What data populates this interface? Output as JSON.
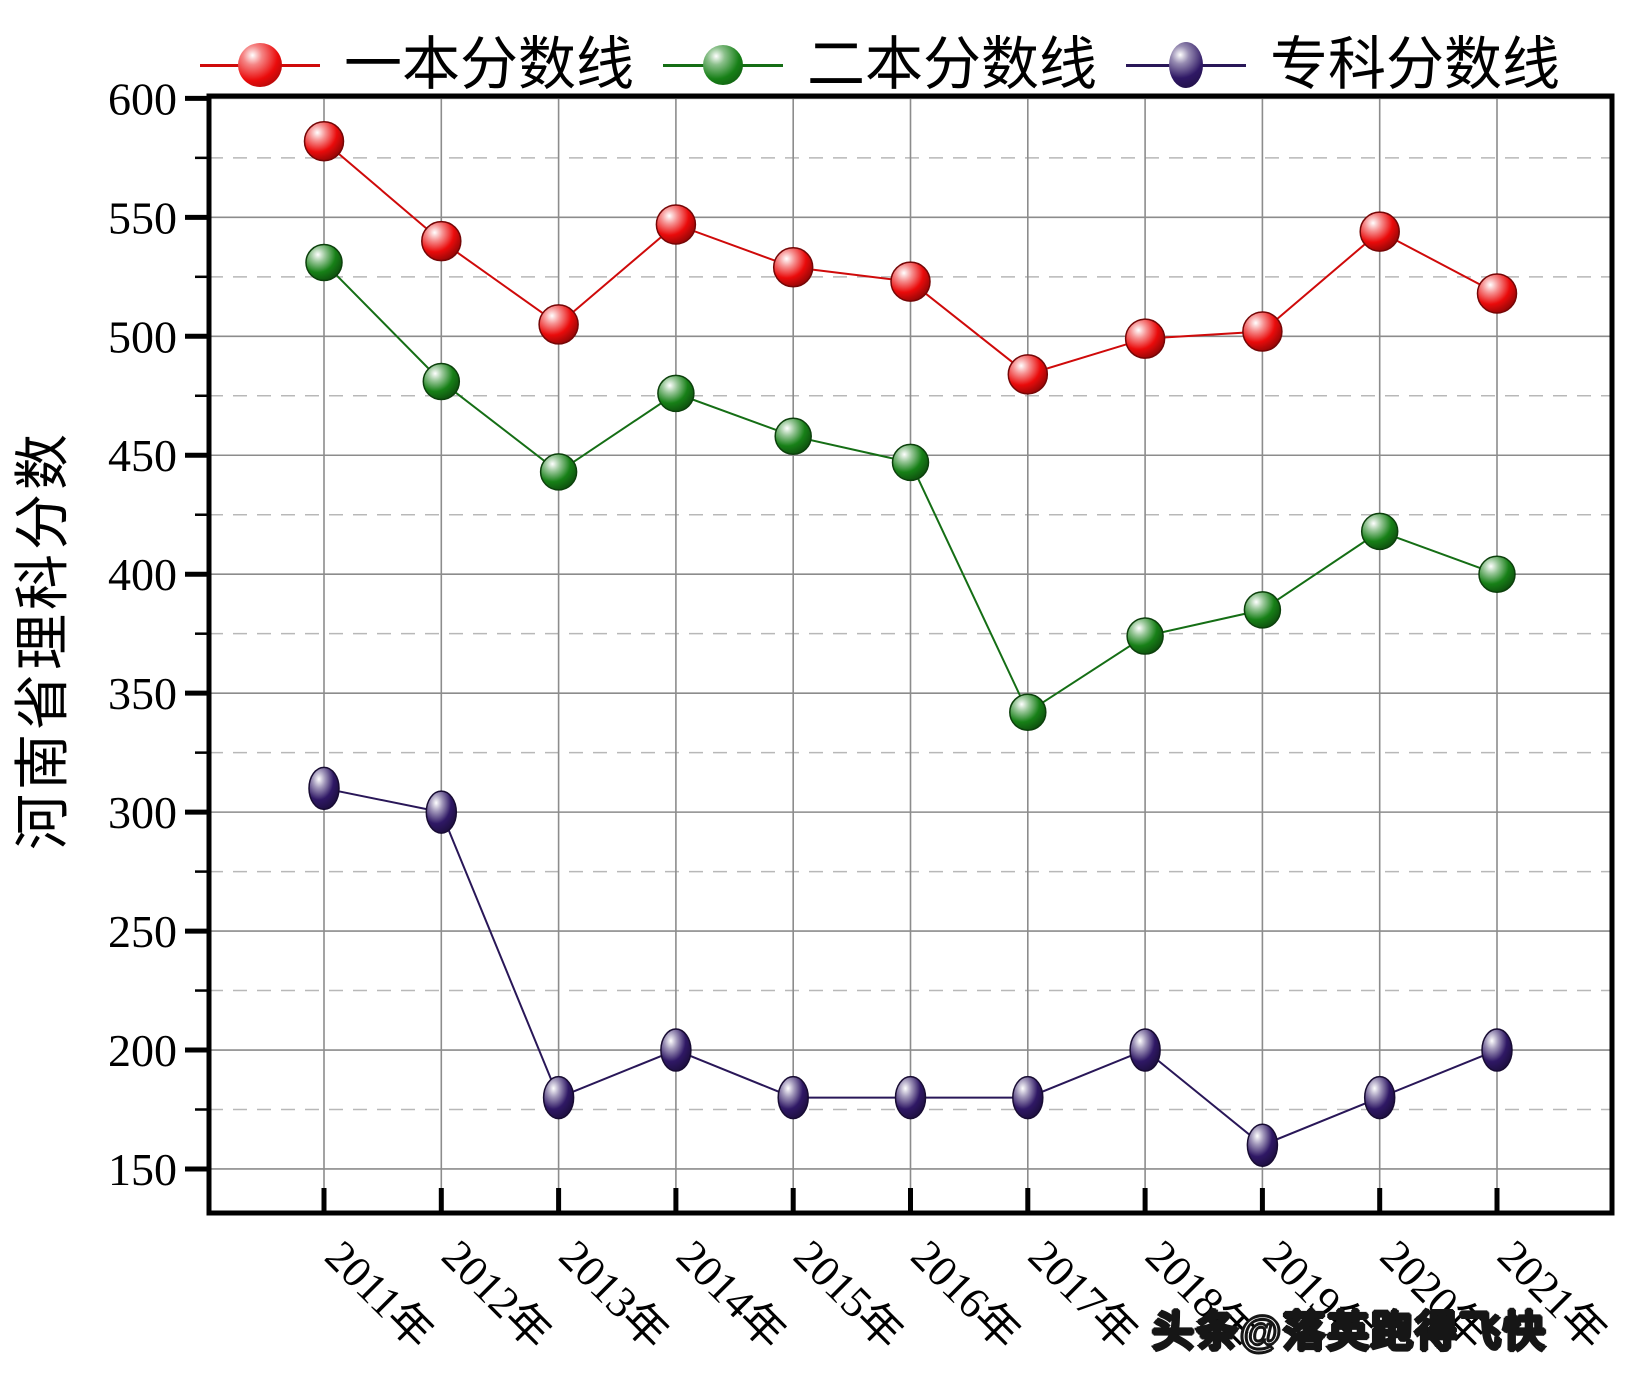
{
  "watermark": "头条@落英跑得飞快",
  "legend": {
    "items": [
      {
        "label": "一本分数线",
        "color": "#ea0b0b",
        "line_color": "#cf0a0a"
      },
      {
        "label": "二本分数线",
        "color": "#178017",
        "line_color": "#156e15"
      },
      {
        "label": "专科分数线",
        "color": "#2f1865",
        "line_color": "#291758"
      }
    ]
  },
  "axes": {
    "y_label": "河南省理科分数",
    "y_ticks": [
      150,
      200,
      250,
      300,
      350,
      400,
      450,
      500,
      550,
      600
    ],
    "grid_major_color": "#8c8c8c",
    "grid_minor_color": "#b8b8b8",
    "axis_color": "#000000"
  },
  "chart_data": {
    "type": "line",
    "categories": [
      "2011年",
      "2012年",
      "2013年",
      "2014年",
      "2015年",
      "2016年",
      "2017年",
      "2018年",
      "2019年",
      "2020年",
      "2021年"
    ],
    "series": [
      {
        "name": "一本分数线",
        "color": "#ea0b0b",
        "line_color": "#cf0a0a",
        "marker": "sphere-circle",
        "values": [
          582,
          540,
          505,
          547,
          529,
          523,
          484,
          499,
          502,
          544,
          518
        ]
      },
      {
        "name": "二本分数线",
        "color": "#178017",
        "line_color": "#156e15",
        "marker": "sphere-circle",
        "values": [
          531,
          481,
          443,
          476,
          458,
          447,
          342,
          374,
          385,
          418,
          400
        ]
      },
      {
        "name": "专科分数线",
        "color": "#2f1865",
        "line_color": "#291758",
        "marker": "sphere-ellipse",
        "values": [
          310,
          300,
          180,
          200,
          180,
          180,
          180,
          200,
          160,
          180,
          200
        ]
      }
    ],
    "title": "",
    "xlabel": "",
    "ylabel": "河南省理科分数",
    "ylim": [
      131.5,
      601
    ],
    "y_major_step": 50,
    "y_minor_step": 25,
    "grid": true,
    "legend_position": "top"
  }
}
